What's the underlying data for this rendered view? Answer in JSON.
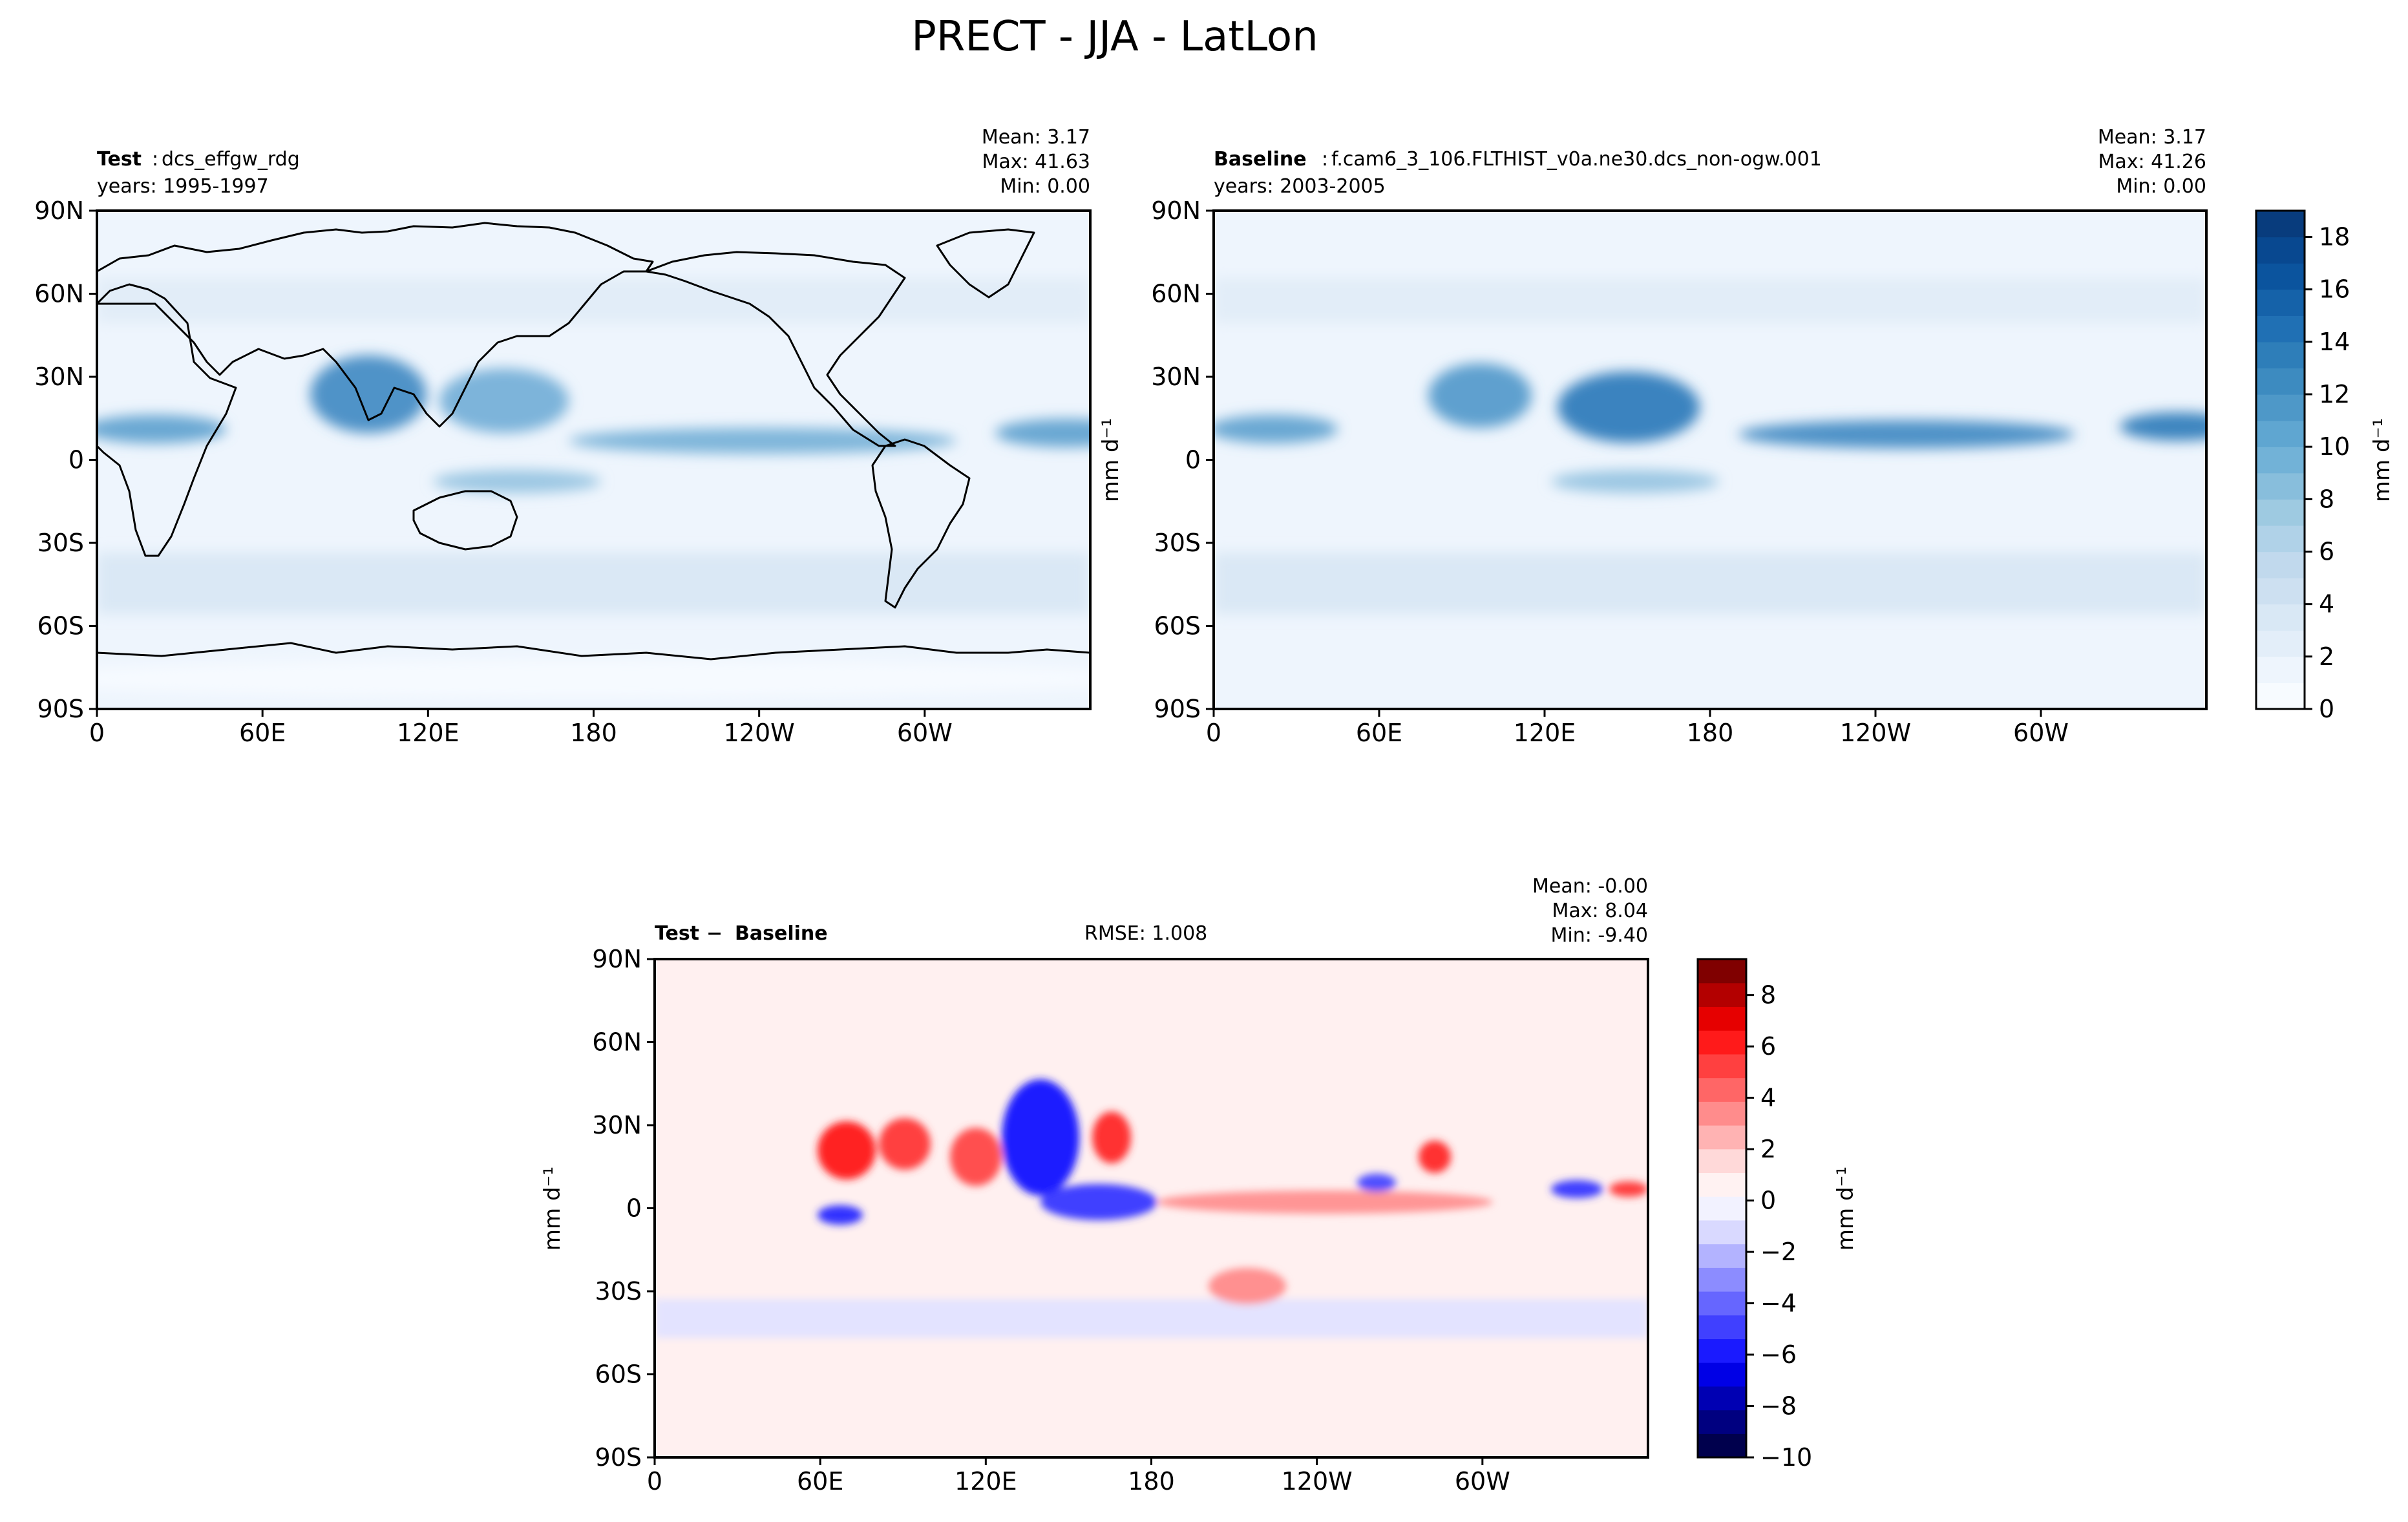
{
  "figure": {
    "title": "PRECT - JJA - LatLon"
  },
  "axes_ticks": {
    "lon": [
      "0",
      "60E",
      "120E",
      "180",
      "120W",
      "60W"
    ],
    "lat": [
      "90N",
      "60N",
      "30N",
      "0",
      "30S",
      "60S",
      "90S"
    ]
  },
  "chart_data": [
    {
      "type": "heatmap",
      "title": "Test",
      "subtitle": "dcs_effgw_rdg",
      "period": "years: 1995-1997",
      "stats": {
        "mean": "Mean:  3.17",
        "max": "Max: 41.63",
        "min": "Min:  0.00"
      },
      "x": {
        "range": [
          0,
          360
        ],
        "ticks": [
          0,
          60,
          120,
          180,
          240,
          300
        ]
      },
      "y": {
        "range": [
          -90,
          90
        ],
        "ticks": [
          90,
          60,
          30,
          0,
          -30,
          -60,
          -90
        ]
      },
      "ylabel": "",
      "colormap": "Blues"
    },
    {
      "type": "heatmap",
      "title": "Baseline",
      "subtitle": "f.cam6_3_106.FLTHIST_v0a.ne30.dcs_non-ogw.001",
      "period": "years: 2003-2005",
      "stats": {
        "mean": "Mean:  3.17",
        "max": "Max: 41.26",
        "min": "Min:  0.00"
      },
      "x": {
        "range": [
          0,
          360
        ],
        "ticks": [
          0,
          60,
          120,
          180,
          240,
          300
        ]
      },
      "y": {
        "range": [
          -90,
          90
        ],
        "ticks": [
          90,
          60,
          30,
          0,
          -30,
          -60,
          -90
        ]
      },
      "ylabel": "mm d⁻¹",
      "colormap": "Blues",
      "colorbar": {
        "label": "mm d⁻¹",
        "range": [
          0,
          19
        ],
        "levels": [
          0,
          1,
          2,
          3,
          4,
          5,
          6,
          7,
          8,
          9,
          10,
          11,
          12,
          13,
          14,
          15,
          16,
          17,
          18,
          19
        ],
        "ticks": [
          "0",
          "2",
          "4",
          "6",
          "8",
          "10",
          "12",
          "14",
          "16",
          "18"
        ],
        "colors": [
          "#f7fbff",
          "#eef5fd",
          "#e3eef9",
          "#d9e8f5",
          "#cde0f1",
          "#c1d9ed",
          "#b0d2e8",
          "#9ecae1",
          "#88bedc",
          "#72b2d7",
          "#5fa6d1",
          "#4e98c8",
          "#3d8bc0",
          "#2e7eb9",
          "#2070b4",
          "#1562a9",
          "#0b549e",
          "#084890",
          "#083c7d"
        ]
      },
      "overlap_note_hidden": ""
    },
    {
      "type": "heatmap",
      "title": "Test",
      "title2": "Baseline",
      "rmse": "RMSE: 1.008",
      "stats": {
        "mean": "Mean: -0.00",
        "max": "Max:  8.04",
        "min": "Min: -9.40"
      },
      "x": {
        "range": [
          0,
          360
        ],
        "ticks": [
          0,
          60,
          120,
          180,
          240,
          300
        ]
      },
      "y": {
        "range": [
          -90,
          90
        ],
        "ticks": [
          90,
          60,
          30,
          0,
          -30,
          -60,
          -90
        ]
      },
      "ylabel": "mm d⁻¹",
      "colormap": "seismic",
      "colorbar": {
        "label": "mm d⁻¹",
        "range": [
          -10,
          9.4
        ],
        "ticks": [
          "−10",
          "−8",
          "−6",
          "−4",
          "−2",
          "0",
          "2",
          "4",
          "6",
          "8"
        ],
        "tick_values": [
          -10,
          -8,
          -6,
          -4,
          -2,
          0,
          2,
          4,
          6,
          8
        ],
        "colors": [
          "#00004d",
          "#000080",
          "#0000b3",
          "#0000e6",
          "#1a1aff",
          "#4040ff",
          "#6666ff",
          "#8c8cff",
          "#b3b3ff",
          "#d9d9ff",
          "#f2f2ff",
          "#fff2f2",
          "#ffd9d9",
          "#ffb3b3",
          "#ff8c8c",
          "#ff6666",
          "#ff4040",
          "#ff1a1a",
          "#e60000",
          "#b30000",
          "#800000"
        ]
      }
    }
  ]
}
